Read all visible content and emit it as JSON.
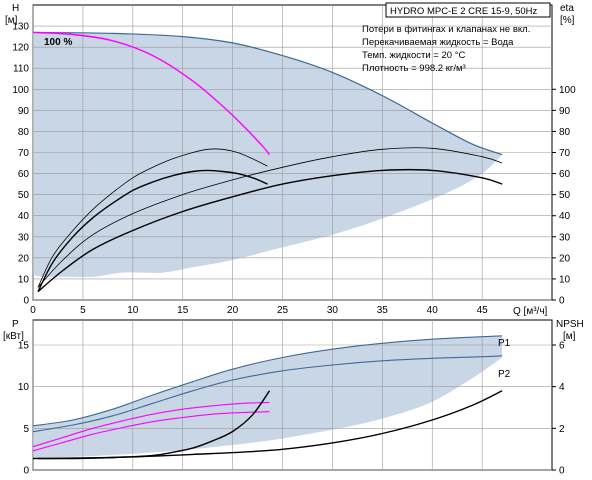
{
  "colors": {
    "envelope": "#c8d6e5",
    "envelope_edge": "#3d6a99",
    "pump_curve": "#000000",
    "efficiency_curve": "#000000",
    "magenta": "#ff00ff",
    "grid": "#9a9a9a"
  },
  "chart_data": [
    {
      "type": "line",
      "title": "HYDRO MPC-E 2 CRE 15-9, 50Hz",
      "notes": [
        "Потери в фитингах и клапанах не вкл.",
        "Перекачиваемая жидкость = Вода",
        "Темп. жидкости = 20 °C",
        "Плотность = 998.2 кг/м³"
      ],
      "xlabel": "Q [м³/ч]",
      "ylabel_left": "H\n[м]",
      "ylabel_right": "eta\n[%]",
      "xlim": [
        0,
        52
      ],
      "ylim": [
        0,
        140
      ],
      "y2lim": [
        0,
        140
      ],
      "x_ticks": [
        0,
        5,
        10,
        15,
        20,
        25,
        30,
        35,
        40,
        45
      ],
      "y_ticks": [
        0,
        10,
        20,
        30,
        40,
        50,
        60,
        70,
        80,
        90,
        100,
        110,
        120,
        130
      ],
      "y2_ticks": [
        0,
        10,
        20,
        30,
        40,
        50,
        60,
        70,
        80,
        90,
        100
      ],
      "grid": true,
      "annotation": "100 %",
      "envelope": {
        "name": "operating-range",
        "upper": [
          [
            0,
            127
          ],
          [
            8,
            126.5
          ],
          [
            15,
            125
          ],
          [
            20,
            122
          ],
          [
            25,
            116
          ],
          [
            30,
            108
          ],
          [
            35,
            97
          ],
          [
            40,
            84
          ],
          [
            44,
            74
          ],
          [
            47,
            69
          ]
        ],
        "lower": [
          [
            47,
            69
          ],
          [
            45,
            60
          ],
          [
            42,
            52
          ],
          [
            38,
            44
          ],
          [
            34,
            37
          ],
          [
            30,
            31
          ],
          [
            25,
            25
          ],
          [
            20,
            19
          ],
          [
            16,
            15.5
          ],
          [
            13,
            13
          ],
          [
            9,
            13
          ],
          [
            6,
            11
          ],
          [
            3,
            11
          ],
          [
            1,
            11
          ],
          [
            0,
            12
          ]
        ]
      },
      "series": [
        {
          "name": "",
          "role": "head-100",
          "color": "#ff00ff",
          "x": [
            0,
            4,
            8,
            12,
            16,
            19,
            21,
            23,
            23.7
          ],
          "y": [
            127,
            126,
            123,
            116,
            104,
            92,
            83,
            73,
            69
          ]
        },
        {
          "name": "",
          "role": "head-single-pump",
          "color": "#000000",
          "x": [
            0.5,
            2,
            4,
            6,
            8,
            10,
            12,
            14,
            16,
            17.5,
            19,
            20.5,
            22,
            23.5
          ],
          "y": [
            6,
            21,
            33,
            43,
            51,
            58,
            63,
            67,
            70,
            71.5,
            71.5,
            70,
            67,
            63.5
          ]
        },
        {
          "name": "",
          "role": "head-two-pumps",
          "color": "#000000",
          "x": [
            0.5,
            3,
            6,
            10,
            15,
            20,
            25,
            30,
            35,
            40,
            45,
            47
          ],
          "y": [
            6,
            19,
            31,
            41,
            50,
            57,
            63,
            68,
            71.5,
            72,
            68,
            65
          ]
        },
        {
          "name": "",
          "role": "eta-single-pump",
          "color": "#000000",
          "x": [
            0.5,
            2,
            4,
            6,
            8,
            10,
            12,
            14,
            16,
            17.5,
            19,
            20.5,
            22,
            23.5
          ],
          "y": [
            4,
            18,
            30,
            39,
            46,
            52,
            56,
            59,
            61,
            61.5,
            61,
            60,
            58,
            55
          ]
        },
        {
          "name": "",
          "role": "eta-two-pumps",
          "color": "#000000",
          "x": [
            0.5,
            3,
            6,
            10,
            15,
            20,
            25,
            30,
            35,
            40,
            45,
            47
          ],
          "y": [
            4,
            14,
            24,
            33,
            42,
            49,
            55,
            59,
            61.5,
            61.5,
            58,
            55
          ]
        }
      ]
    },
    {
      "type": "line",
      "xlabel": "Q [м³/ч]",
      "ylabel_left": "P\n[кВт]",
      "ylabel_right": "NPSH\n[м]",
      "xlim": [
        0,
        52
      ],
      "ylim": [
        0,
        18
      ],
      "y2lim": [
        0,
        7.2
      ],
      "y_ticks": [
        0,
        5,
        10,
        15
      ],
      "y2_ticks": [
        0,
        2,
        4,
        6
      ],
      "grid": true,
      "envelope": {
        "name": "power-range",
        "upper": [
          [
            0,
            5.3
          ],
          [
            4,
            6.0
          ],
          [
            8,
            7.3
          ],
          [
            12,
            9.0
          ],
          [
            16,
            10.6
          ],
          [
            20,
            12.1
          ],
          [
            25,
            13.5
          ],
          [
            30,
            14.5
          ],
          [
            35,
            15.2
          ],
          [
            40,
            15.7
          ],
          [
            45,
            16.0
          ],
          [
            47,
            16.1
          ]
        ],
        "lower": [
          [
            47,
            13.5
          ],
          [
            44,
            11.0
          ],
          [
            40,
            8.2
          ],
          [
            36,
            6.5
          ],
          [
            32,
            5.3
          ],
          [
            28,
            4.4
          ],
          [
            24,
            3.6
          ],
          [
            20,
            3.0
          ],
          [
            16,
            2.5
          ],
          [
            12,
            2.1
          ],
          [
            8,
            1.8
          ],
          [
            4,
            1.6
          ],
          [
            0,
            1.5
          ]
        ]
      },
      "labels": [
        "P1",
        "P2"
      ],
      "series": [
        {
          "name": "P1",
          "role": "p1-upper",
          "color": "#3d6a99",
          "x": [
            0,
            4,
            8,
            12,
            16,
            20,
            25,
            30,
            35,
            40,
            45,
            47
          ],
          "y": [
            5.3,
            6.0,
            7.3,
            9.0,
            10.6,
            12.1,
            13.5,
            14.5,
            15.2,
            15.7,
            16.0,
            16.1
          ]
        },
        {
          "name": "P2",
          "role": "p2-upper",
          "color": "#3d6a99",
          "x": [
            0,
            4,
            8,
            12,
            16,
            20,
            25,
            30,
            35,
            40,
            45,
            47
          ],
          "y": [
            4.6,
            5.4,
            6.5,
            8.0,
            9.5,
            10.8,
            11.9,
            12.6,
            13.1,
            13.4,
            13.6,
            13.7
          ]
        },
        {
          "name": "",
          "role": "p1-single-pump",
          "color": "#ff00ff",
          "x": [
            0,
            3,
            6,
            9,
            12,
            15,
            18,
            21,
            23.7
          ],
          "y": [
            2.8,
            3.9,
            5.0,
            5.9,
            6.7,
            7.3,
            7.7,
            8.0,
            8.1
          ]
        },
        {
          "name": "",
          "role": "p2-single-pump",
          "color": "#ff00ff",
          "x": [
            0,
            3,
            6,
            9,
            12,
            15,
            18,
            21,
            23.7
          ],
          "y": [
            2.3,
            3.3,
            4.3,
            5.1,
            5.8,
            6.3,
            6.7,
            6.9,
            7.0
          ]
        },
        {
          "name": "",
          "role": "npsh-single-pump",
          "color": "#000000",
          "axis": "right",
          "x": [
            0.5,
            4,
            8,
            12,
            14,
            16,
            18,
            20,
            22,
            23.7
          ],
          "y": [
            0.55,
            0.55,
            0.6,
            0.7,
            0.85,
            1.05,
            1.4,
            1.85,
            2.65,
            3.8
          ]
        },
        {
          "name": "",
          "role": "npsh-two-pumps",
          "color": "#000000",
          "axis": "right",
          "x": [
            0,
            8,
            16,
            24,
            30,
            35,
            40,
            44,
            47
          ],
          "y": [
            0.55,
            0.6,
            0.75,
            0.95,
            1.3,
            1.75,
            2.4,
            3.1,
            3.8
          ]
        }
      ]
    }
  ]
}
